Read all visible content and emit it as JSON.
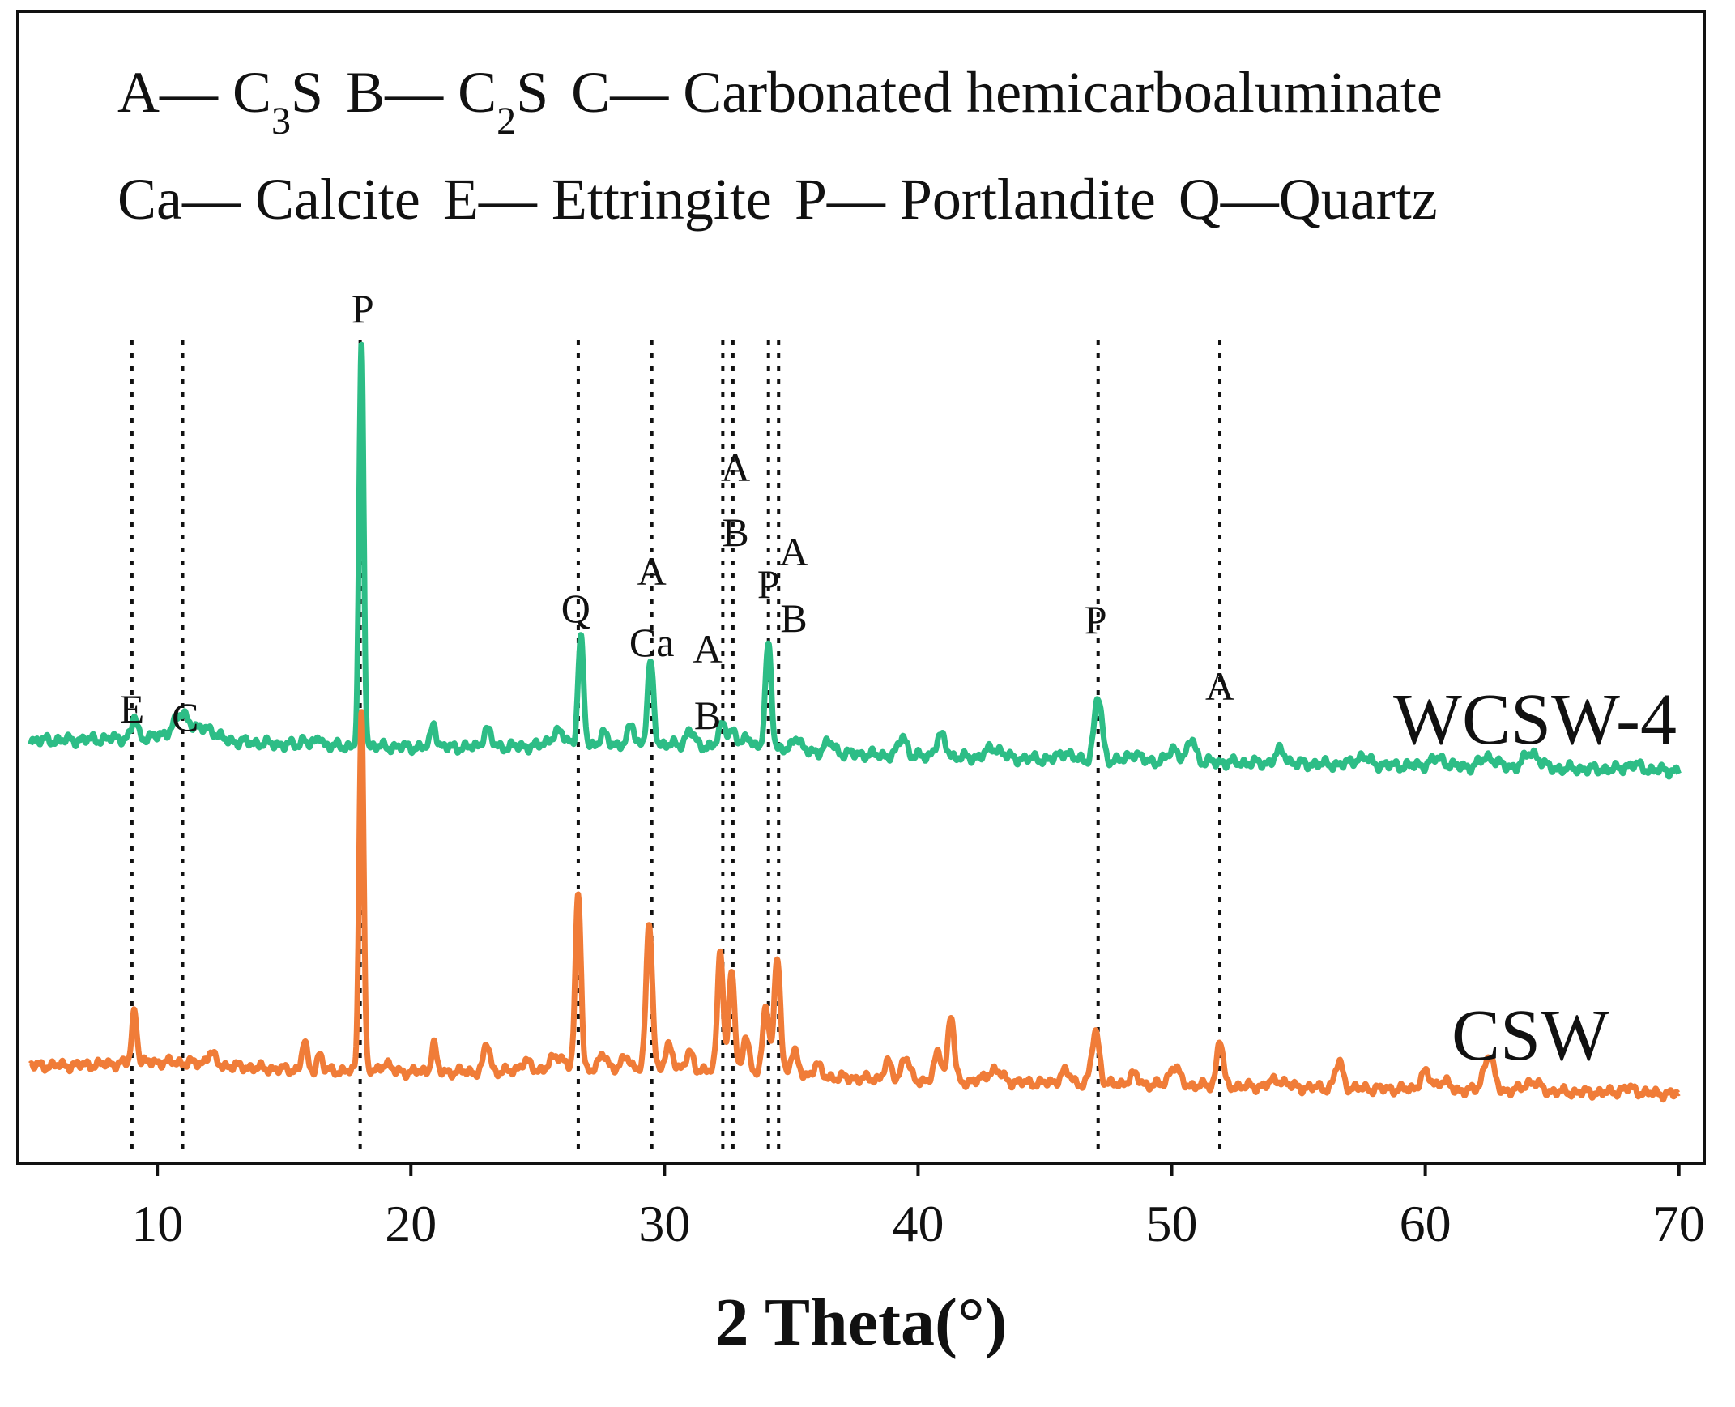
{
  "chart_data": {
    "type": "line",
    "title": "",
    "xlabel": "2 Theta(°)",
    "ylabel": "",
    "xlim": [
      4.5,
      71
    ],
    "y_ticks_visible": false,
    "grid": false,
    "x_ticks": [
      10,
      20,
      30,
      40,
      50,
      60,
      70
    ],
    "x_tick_labels": [
      "10",
      "20",
      "30",
      "40",
      "50",
      "60",
      "70"
    ],
    "legend_lines": [
      {
        "name": "line1",
        "parts": [
          {
            "text": "A— C",
            "sub": "3",
            "after": "S"
          },
          {
            "text": "B— C",
            "sub": "2",
            "after": "S"
          },
          {
            "text": "C— Carbonated hemicarboaluminate"
          }
        ]
      },
      {
        "name": "line2",
        "parts": [
          {
            "text": "Ca— Calcite"
          },
          {
            "text": "E— Ettringite"
          },
          {
            "text": "P— Portlandite"
          },
          {
            "text": "Q—Quartz"
          }
        ]
      }
    ],
    "series": [
      {
        "name": "WCSW-4",
        "color": "#2dbd86",
        "baseline_start": 18,
        "baseline_end": 6,
        "peaks": [
          [
            9.1,
            8,
            0.1
          ],
          [
            11.0,
            9,
            0.35
          ],
          [
            12.0,
            4,
            0.3
          ],
          [
            15.8,
            3,
            0.1
          ],
          [
            16.4,
            4,
            0.1
          ],
          [
            18.05,
            160,
            0.09
          ],
          [
            20.9,
            10,
            0.1
          ],
          [
            23.0,
            7,
            0.15
          ],
          [
            25.8,
            5,
            0.3
          ],
          [
            26.7,
            42,
            0.11
          ],
          [
            27.6,
            4,
            0.15
          ],
          [
            28.7,
            8,
            0.12
          ],
          [
            29.45,
            32,
            0.12
          ],
          [
            31.0,
            6,
            0.15
          ],
          [
            32.3,
            9,
            0.15
          ],
          [
            32.7,
            6,
            0.15
          ],
          [
            33.3,
            5,
            0.15
          ],
          [
            34.1,
            42,
            0.12
          ],
          [
            35.2,
            6,
            0.15
          ],
          [
            36.5,
            4,
            0.2
          ],
          [
            39.4,
            8,
            0.15
          ],
          [
            40.9,
            8,
            0.2
          ],
          [
            43.0,
            4,
            0.3
          ],
          [
            45.8,
            3,
            0.2
          ],
          [
            47.1,
            25,
            0.15
          ],
          [
            48.5,
            3,
            0.2
          ],
          [
            50.1,
            5,
            0.2
          ],
          [
            50.8,
            9,
            0.15
          ],
          [
            54.3,
            5,
            0.2
          ],
          [
            57.5,
            3,
            0.3
          ],
          [
            60.5,
            3,
            0.3
          ],
          [
            62.5,
            4,
            0.3
          ],
          [
            64.2,
            6,
            0.3
          ],
          [
            68.2,
            2,
            0.3
          ]
        ]
      },
      {
        "name": "CSW",
        "color": "#f07c38",
        "baseline_start": 16,
        "baseline_end": 4,
        "peaks": [
          [
            9.1,
            22,
            0.1
          ],
          [
            12.1,
            5,
            0.15
          ],
          [
            15.8,
            12,
            0.1
          ],
          [
            16.4,
            7,
            0.1
          ],
          [
            18.05,
            155,
            0.09
          ],
          [
            19.0,
            4,
            0.15
          ],
          [
            20.9,
            12,
            0.1
          ],
          [
            23.0,
            12,
            0.12
          ],
          [
            24.5,
            4,
            0.2
          ],
          [
            25.8,
            6,
            0.3
          ],
          [
            26.6,
            75,
            0.11
          ],
          [
            27.6,
            7,
            0.15
          ],
          [
            28.5,
            6,
            0.15
          ],
          [
            29.4,
            63,
            0.12
          ],
          [
            30.2,
            10,
            0.15
          ],
          [
            31.0,
            7,
            0.15
          ],
          [
            32.2,
            53,
            0.11
          ],
          [
            32.65,
            44,
            0.11
          ],
          [
            33.2,
            16,
            0.12
          ],
          [
            34.0,
            30,
            0.12
          ],
          [
            34.45,
            50,
            0.12
          ],
          [
            35.1,
            10,
            0.15
          ],
          [
            36.0,
            5,
            0.15
          ],
          [
            38.8,
            7,
            0.15
          ],
          [
            39.5,
            10,
            0.15
          ],
          [
            40.8,
            12,
            0.15
          ],
          [
            41.3,
            28,
            0.12
          ],
          [
            43.0,
            5,
            0.3
          ],
          [
            45.8,
            5,
            0.2
          ],
          [
            47.0,
            22,
            0.15
          ],
          [
            48.5,
            4,
            0.2
          ],
          [
            50.1,
            8,
            0.2
          ],
          [
            51.9,
            20,
            0.12
          ],
          [
            54.2,
            3,
            0.3
          ],
          [
            56.6,
            11,
            0.15
          ],
          [
            60.0,
            7,
            0.2
          ],
          [
            60.7,
            4,
            0.2
          ],
          [
            62.5,
            15,
            0.2
          ],
          [
            64.2,
            4,
            0.3
          ],
          [
            68.0,
            2,
            0.3
          ]
        ]
      }
    ],
    "reference_lines": [
      9.0,
      11.0,
      18.0,
      26.6,
      29.5,
      32.3,
      32.7,
      34.1,
      34.5,
      47.1,
      51.9
    ],
    "peak_labels": [
      {
        "label": "E",
        "x": 9.0
      },
      {
        "label": "C",
        "x": 11.1
      },
      {
        "label": "P",
        "x": 18.1
      },
      {
        "label": "Q",
        "x": 26.5
      },
      {
        "label": "A",
        "x": 29.5
      },
      {
        "label": "Ca",
        "x": 29.5
      },
      {
        "label": "A",
        "x": 31.7
      },
      {
        "label": "B",
        "x": 31.7
      },
      {
        "label": "A",
        "x": 32.8
      },
      {
        "label": "B",
        "x": 32.8
      },
      {
        "label": "P",
        "x": 34.1
      },
      {
        "label": "A",
        "x": 35.1
      },
      {
        "label": "B",
        "x": 35.1
      },
      {
        "label": "P",
        "x": 47.0
      },
      {
        "label": "A",
        "x": 51.9
      }
    ]
  }
}
